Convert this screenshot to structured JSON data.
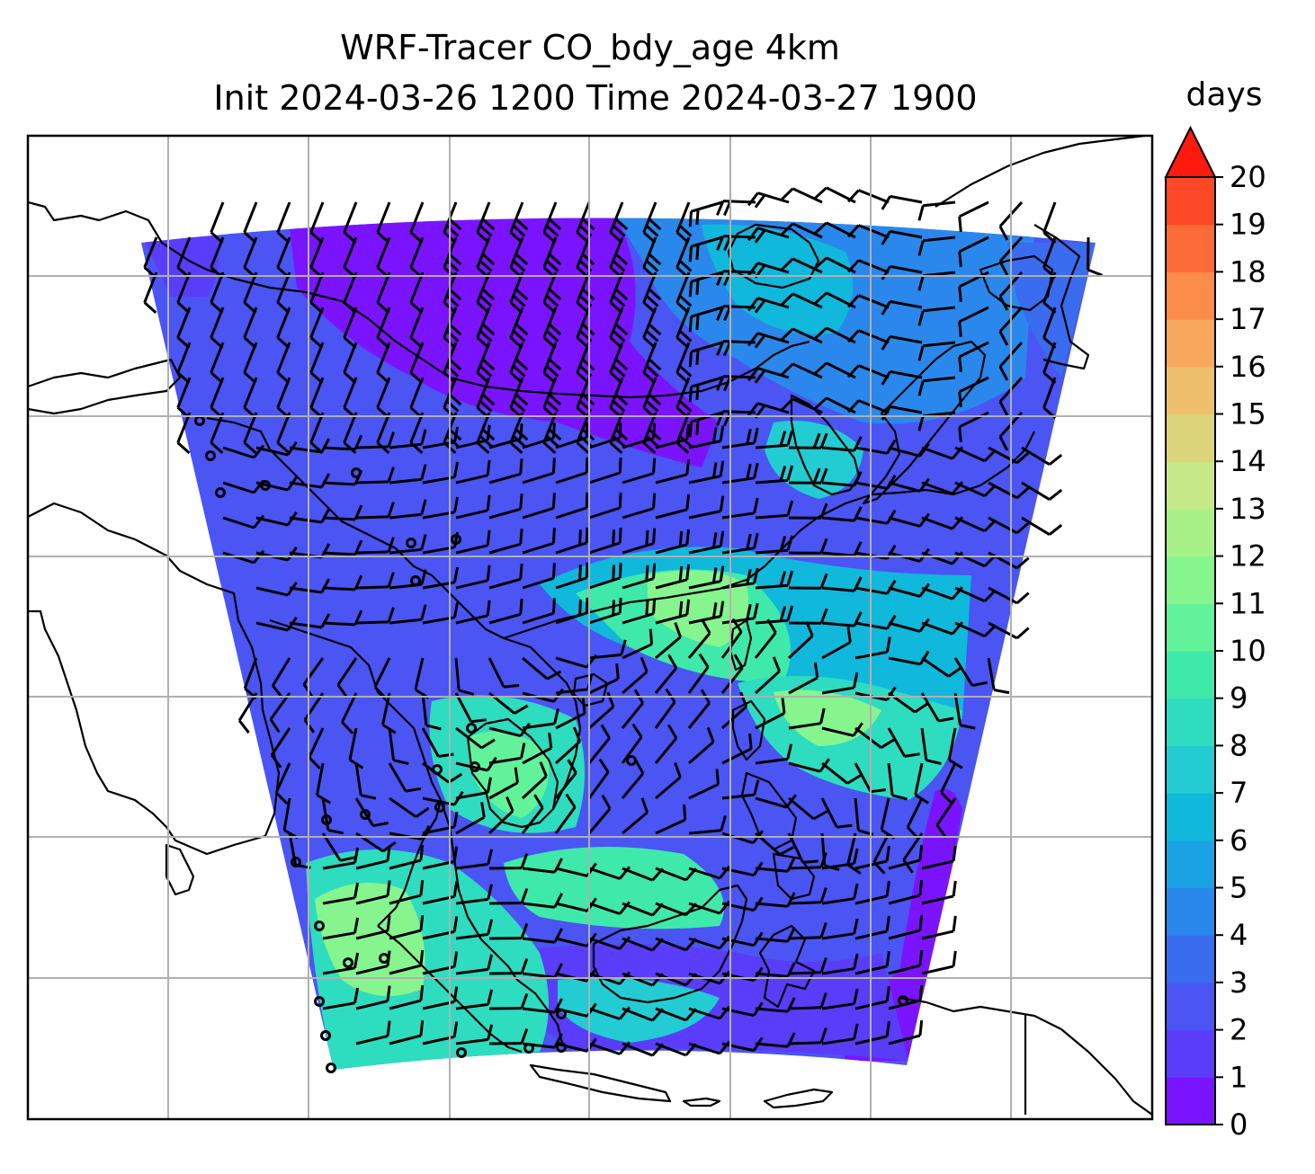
{
  "figure": {
    "title_line1": "WRF-Tracer CO_bdy_age 4km",
    "title_line2": "Init 2024-03-26 1200 Time 2024-03-27 1900"
  },
  "colorbar": {
    "label": "days",
    "ticks": [
      "0",
      "1",
      "2",
      "3",
      "4",
      "5",
      "6",
      "7",
      "8",
      "9",
      "10",
      "11",
      "12",
      "13",
      "14",
      "15",
      "16",
      "17",
      "18",
      "19",
      "20"
    ],
    "min": 0,
    "max": 20,
    "extend": "max",
    "colors": [
      "#7a14ff",
      "#5a3cfb",
      "#4a55f4",
      "#3a6cf0",
      "#2a88ec",
      "#1aa2e4",
      "#10b8dc",
      "#22ccd2",
      "#2edcc0",
      "#3fe9aa",
      "#62f39a",
      "#86f58e",
      "#a8f088",
      "#c6e888",
      "#dcd47a",
      "#eec06e",
      "#f7a85c",
      "#fb8c4a",
      "#fd6c38",
      "#fd4828",
      "#ff1a10"
    ]
  },
  "map": {
    "field": "CO_bdy_age",
    "units": "days",
    "grid": true,
    "coastlines": true,
    "wind_barbs": true
  }
}
